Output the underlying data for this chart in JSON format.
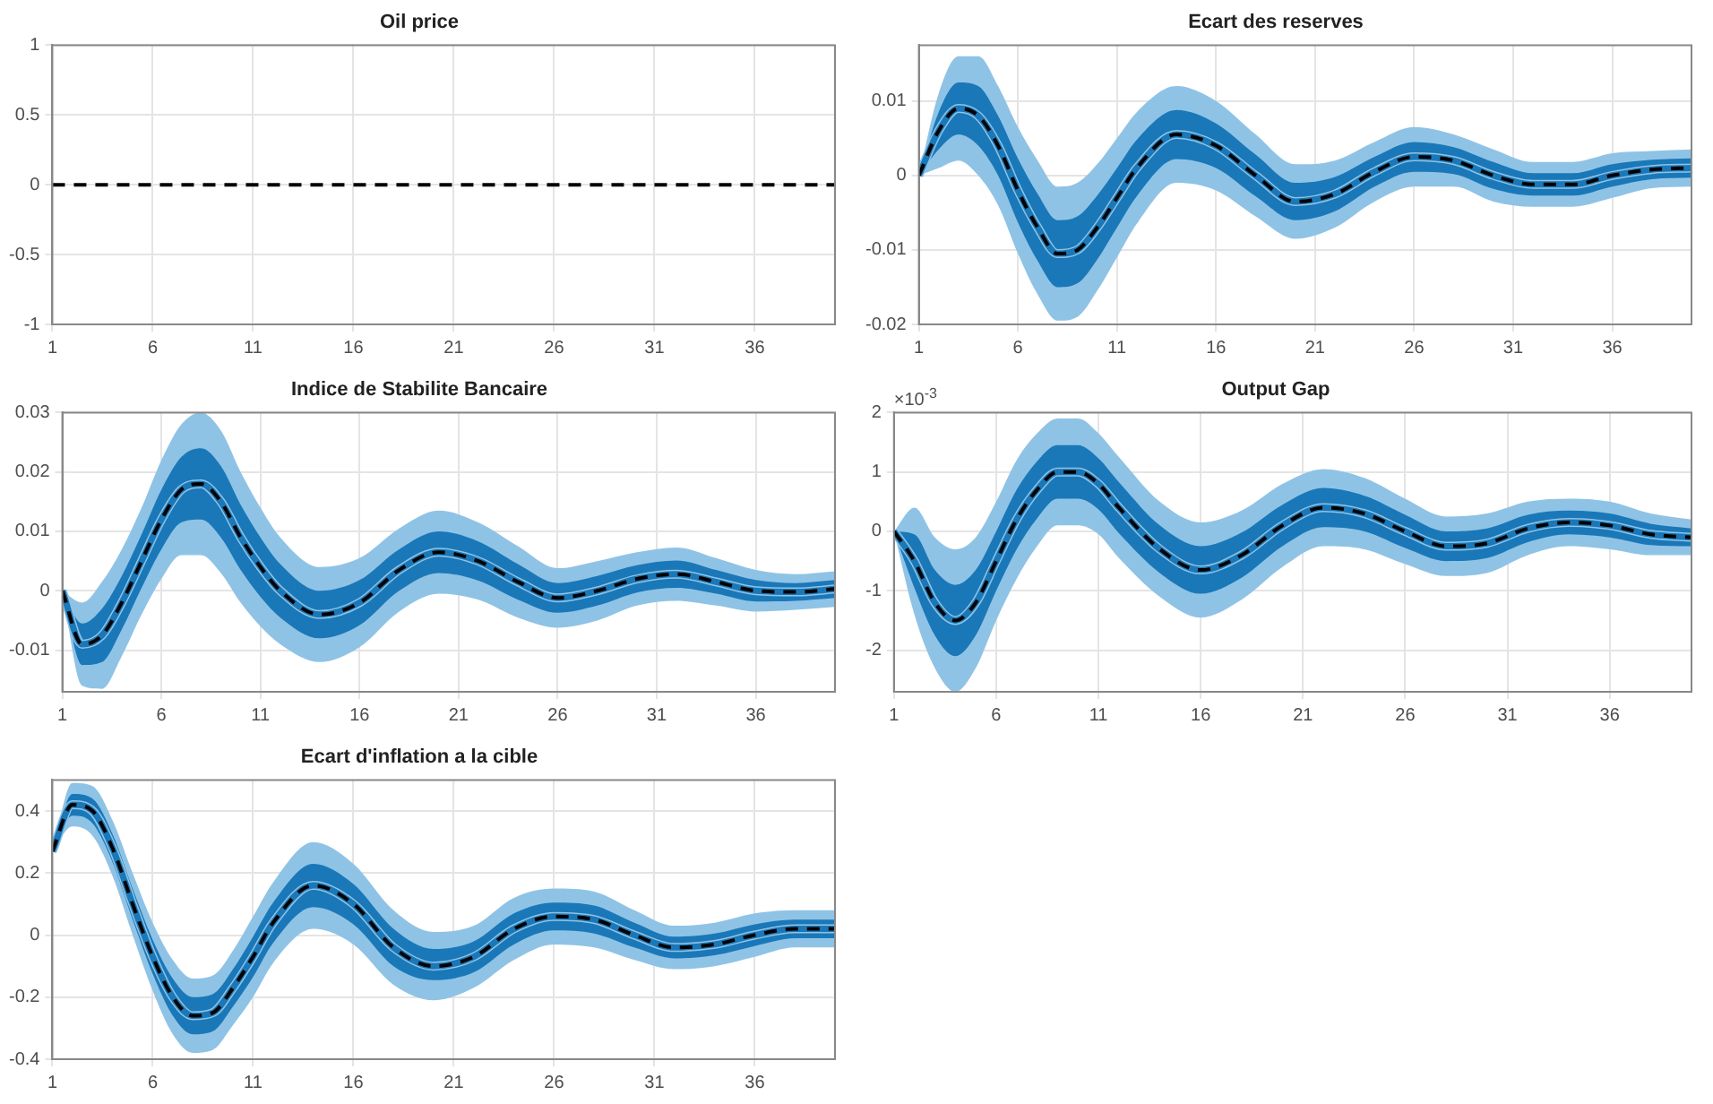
{
  "chart_data": [
    {
      "type": "line",
      "title": "Oil price",
      "x": [
        1,
        2,
        3,
        4,
        5,
        6,
        7,
        8,
        9,
        10,
        11,
        12,
        14,
        16,
        18,
        20,
        22,
        24,
        26,
        28,
        30,
        32,
        34,
        36,
        38,
        40
      ],
      "xlim": [
        1,
        40
      ],
      "xticks": [
        1,
        6,
        11,
        16,
        21,
        26,
        31,
        36
      ],
      "ylim": [
        -1,
        1
      ],
      "yticks": [
        -1,
        -0.5,
        0,
        0.5,
        1
      ],
      "grid": true,
      "series": [
        {
          "type": "line",
          "color": "#000000",
          "line_style": "dashed",
          "values": [
            0,
            0,
            0,
            0,
            0,
            0,
            0,
            0,
            0,
            0,
            0,
            0,
            0,
            0,
            0,
            0,
            0,
            0,
            0,
            0,
            0,
            0,
            0,
            0,
            0,
            0
          ]
        }
      ]
    },
    {
      "type": "line",
      "title": "Ecart des reserves",
      "x": [
        1,
        2,
        3,
        4,
        5,
        6,
        7,
        8,
        9,
        10,
        11,
        12,
        14,
        16,
        18,
        20,
        22,
        24,
        26,
        28,
        30,
        32,
        34,
        36,
        38,
        40
      ],
      "xlim": [
        1,
        40
      ],
      "xticks": [
        1,
        6,
        11,
        16,
        21,
        26,
        31,
        36
      ],
      "ylim": [
        -0.02,
        0.0175
      ],
      "yticks": [
        -0.02,
        -0.01,
        0,
        0.01
      ],
      "grid": true,
      "series": [
        {
          "type": "line",
          "color": "#8fc3e6",
          "values": [
            0,
            0.006,
            0.009,
            0.008,
            0.004,
            -0.002,
            -0.007,
            -0.0105,
            -0.01,
            -0.007,
            -0.003,
            0.001,
            0.0055,
            0.004,
            0,
            -0.0035,
            -0.0025,
            0.0005,
            0.0025,
            0.002,
            0,
            -0.0012,
            -0.0012,
            0,
            0.0008,
            0.001
          ],
          "lower": [
            0,
            0.001,
            0.002,
            0,
            -0.004,
            -0.0105,
            -0.016,
            -0.0195,
            -0.019,
            -0.0155,
            -0.011,
            -0.0065,
            -0.001,
            -0.002,
            -0.0055,
            -0.0085,
            -0.007,
            -0.0035,
            -0.0015,
            -0.0015,
            -0.0035,
            -0.0042,
            -0.0042,
            -0.003,
            -0.0017,
            -0.0015
          ],
          "upper": [
            0,
            0.011,
            0.016,
            0.016,
            0.012,
            0.0065,
            0.002,
            -0.0015,
            -0.001,
            0.0015,
            0.005,
            0.0085,
            0.012,
            0.01,
            0.0055,
            0.0015,
            0.002,
            0.0045,
            0.0065,
            0.0055,
            0.0035,
            0.0018,
            0.0018,
            0.003,
            0.0033,
            0.0035
          ]
        },
        {
          "type": "line",
          "color": "#1a78b8",
          "values": [
            0,
            0.006,
            0.009,
            0.008,
            0.004,
            -0.002,
            -0.007,
            -0.0105,
            -0.01,
            -0.007,
            -0.003,
            0.001,
            0.0055,
            0.004,
            0,
            -0.0035,
            -0.0025,
            0.0005,
            0.0025,
            0.002,
            0,
            -0.0012,
            -0.0012,
            0,
            0.0008,
            0.001
          ],
          "lower": [
            0,
            0.0035,
            0.0055,
            0.004,
            0,
            -0.0063,
            -0.0115,
            -0.015,
            -0.0145,
            -0.0113,
            -0.007,
            -0.0028,
            0.0022,
            0.001,
            -0.0028,
            -0.006,
            -0.0048,
            -0.0015,
            0.0005,
            0.0002,
            -0.0018,
            -0.0027,
            -0.0027,
            -0.0015,
            -0.0005,
            -0.0003
          ],
          "upper": [
            0,
            0.0085,
            0.0125,
            0.012,
            0.008,
            0.0023,
            -0.0025,
            -0.006,
            -0.0055,
            -0.0027,
            0.001,
            0.0048,
            0.0088,
            0.007,
            0.0028,
            -0.001,
            -0.0002,
            0.0025,
            0.0045,
            0.0038,
            0.0018,
            0.0003,
            0.0003,
            0.0015,
            0.0021,
            0.0023
          ]
        },
        {
          "type": "line",
          "color": "#000000",
          "line_style": "dashed",
          "values": [
            0,
            0.006,
            0.009,
            0.008,
            0.004,
            -0.002,
            -0.007,
            -0.0105,
            -0.01,
            -0.007,
            -0.003,
            0.001,
            0.0055,
            0.004,
            0,
            -0.0035,
            -0.0025,
            0.0005,
            0.0025,
            0.002,
            0,
            -0.0012,
            -0.0012,
            0,
            0.0008,
            0.001
          ]
        }
      ]
    },
    {
      "type": "line",
      "title": "Indice de Stabilite Bancaire",
      "x": [
        1,
        2,
        3,
        4,
        5,
        6,
        7,
        8,
        9,
        10,
        11,
        12,
        14,
        16,
        18,
        20,
        22,
        24,
        26,
        28,
        30,
        32,
        34,
        36,
        38,
        40
      ],
      "xlim": [
        1,
        40
      ],
      "xticks": [
        1,
        6,
        11,
        16,
        21,
        26,
        31,
        36
      ],
      "ylim": [
        -0.017,
        0.03
      ],
      "yticks": [
        -0.01,
        0,
        0.01,
        0.02,
        0.03
      ],
      "grid": true,
      "series": [
        {
          "type": "line",
          "color": "#8fc3e6",
          "values": [
            0,
            -0.009,
            -0.0075,
            -0.002,
            0.005,
            0.012,
            0.017,
            0.018,
            0.015,
            0.009,
            0.004,
            0,
            -0.004,
            -0.002,
            0.0035,
            0.0065,
            0.005,
            0.0015,
            -0.0012,
            0,
            0.002,
            0.0028,
            0.0015,
            0,
            -0.0002,
            0.0003
          ],
          "lower": [
            0,
            -0.016,
            -0.0165,
            -0.011,
            -0.004,
            0.002,
            0.006,
            0.006,
            0.003,
            -0.002,
            -0.006,
            -0.009,
            -0.012,
            -0.0095,
            -0.0035,
            -0.0005,
            -0.0015,
            -0.0045,
            -0.0062,
            -0.005,
            -0.0025,
            -0.0017,
            -0.0025,
            -0.0035,
            -0.0032,
            -0.0027
          ],
          "upper": [
            0,
            -0.002,
            0.0015,
            0.007,
            0.014,
            0.022,
            0.028,
            0.03,
            0.027,
            0.02,
            0.014,
            0.009,
            0.004,
            0.0055,
            0.0105,
            0.0135,
            0.0115,
            0.0075,
            0.0038,
            0.005,
            0.0065,
            0.0073,
            0.0055,
            0.0035,
            0.0028,
            0.0033
          ]
        },
        {
          "type": "line",
          "color": "#1a78b8",
          "values": [
            0,
            -0.009,
            -0.0075,
            -0.002,
            0.005,
            0.012,
            0.017,
            0.018,
            0.015,
            0.009,
            0.004,
            0,
            -0.004,
            -0.002,
            0.0035,
            0.0065,
            0.005,
            0.0015,
            -0.0012,
            0,
            0.002,
            0.0028,
            0.0015,
            0,
            -0.0002,
            0.0003
          ],
          "lower": [
            0,
            -0.0125,
            -0.012,
            -0.0065,
            0.0005,
            0.007,
            0.0115,
            0.012,
            0.009,
            0.0035,
            -0.001,
            -0.0045,
            -0.008,
            -0.0058,
            0,
            0.003,
            0.0017,
            -0.0015,
            -0.0037,
            -0.0025,
            -0.0003,
            0.0005,
            -0.0005,
            -0.0018,
            -0.0017,
            -0.0012
          ],
          "upper": [
            0,
            -0.0055,
            -0.003,
            0.0025,
            0.0095,
            0.017,
            0.0225,
            0.024,
            0.021,
            0.0145,
            0.009,
            0.0045,
            0,
            0.0018,
            0.007,
            0.01,
            0.0083,
            0.0045,
            0.0013,
            0.0025,
            0.0043,
            0.0051,
            0.0035,
            0.0018,
            0.0013,
            0.0018
          ]
        },
        {
          "type": "line",
          "color": "#000000",
          "line_style": "dashed",
          "values": [
            0,
            -0.009,
            -0.0075,
            -0.002,
            0.005,
            0.012,
            0.017,
            0.018,
            0.015,
            0.009,
            0.004,
            0,
            -0.004,
            -0.002,
            0.0035,
            0.0065,
            0.005,
            0.0015,
            -0.0012,
            0,
            0.002,
            0.0028,
            0.0015,
            0,
            -0.0002,
            0.0003
          ]
        }
      ]
    },
    {
      "type": "line",
      "title": "Output Gap",
      "annotations": [
        "×10$^{-3}$"
      ],
      "x": [
        1,
        2,
        3,
        4,
        5,
        6,
        7,
        8,
        9,
        10,
        11,
        12,
        14,
        16,
        18,
        20,
        22,
        24,
        26,
        28,
        30,
        32,
        34,
        36,
        38,
        40
      ],
      "xlim": [
        1,
        40
      ],
      "xticks": [
        1,
        6,
        11,
        16,
        21,
        26,
        31,
        36
      ],
      "ylim": [
        -2.7,
        2
      ],
      "yticks": [
        -2,
        -1,
        0,
        1,
        2
      ],
      "grid": true,
      "series": [
        {
          "type": "line",
          "color": "#8fc3e6",
          "values": [
            0,
            -0.5,
            -1.2,
            -1.5,
            -1.2,
            -0.5,
            0.2,
            0.7,
            1,
            1,
            0.8,
            0.4,
            -0.3,
            -0.65,
            -0.4,
            0.1,
            0.4,
            0.3,
            0,
            -0.25,
            -0.2,
            0.05,
            0.15,
            0.1,
            -0.05,
            -0.1
          ],
          "lower": [
            0,
            -1.4,
            -2.3,
            -2.7,
            -2.3,
            -1.5,
            -0.8,
            -0.25,
            0.1,
            0.1,
            -0.05,
            -0.45,
            -1.1,
            -1.45,
            -1.15,
            -0.6,
            -0.25,
            -0.3,
            -0.55,
            -0.75,
            -0.7,
            -0.4,
            -0.25,
            -0.3,
            -0.4,
            -0.4
          ],
          "upper": [
            0,
            0.4,
            -0.1,
            -0.3,
            -0.1,
            0.5,
            1.2,
            1.65,
            1.9,
            1.9,
            1.65,
            1.25,
            0.5,
            0.15,
            0.35,
            0.8,
            1.05,
            0.9,
            0.55,
            0.25,
            0.3,
            0.5,
            0.55,
            0.5,
            0.3,
            0.2
          ]
        },
        {
          "type": "line",
          "color": "#1a78b8",
          "values": [
            0,
            -0.5,
            -1.2,
            -1.5,
            -1.2,
            -0.5,
            0.2,
            0.7,
            1,
            1,
            0.8,
            0.4,
            -0.3,
            -0.65,
            -0.4,
            0.1,
            0.4,
            0.3,
            0,
            -0.25,
            -0.2,
            0.05,
            0.15,
            0.1,
            -0.05,
            -0.1
          ],
          "lower": [
            0,
            -0.95,
            -1.75,
            -2.1,
            -1.75,
            -1,
            -0.3,
            0.22,
            0.55,
            0.55,
            0.37,
            -0.03,
            -0.7,
            -1.05,
            -0.78,
            -0.25,
            0.07,
            0,
            -0.28,
            -0.5,
            -0.45,
            -0.18,
            -0.05,
            -0.1,
            -0.23,
            -0.25
          ],
          "upper": [
            0,
            -0.05,
            -0.65,
            -0.9,
            -0.65,
            0,
            0.7,
            1.18,
            1.45,
            1.45,
            1.23,
            0.83,
            0.1,
            -0.25,
            -0.02,
            0.45,
            0.73,
            0.6,
            0.28,
            0,
            0.05,
            0.28,
            0.35,
            0.3,
            0.13,
            0.05
          ]
        },
        {
          "type": "line",
          "color": "#000000",
          "line_style": "dashed",
          "values": [
            0,
            -0.5,
            -1.2,
            -1.5,
            -1.2,
            -0.5,
            0.2,
            0.7,
            1,
            1,
            0.8,
            0.4,
            -0.3,
            -0.65,
            -0.4,
            0.1,
            0.4,
            0.3,
            0,
            -0.25,
            -0.2,
            0.05,
            0.15,
            0.1,
            -0.05,
            -0.1
          ]
        }
      ]
    },
    {
      "type": "line",
      "title": "Ecart d'inflation a la cible",
      "x": [
        1,
        2,
        3,
        4,
        5,
        6,
        7,
        8,
        9,
        10,
        11,
        12,
        14,
        16,
        18,
        20,
        22,
        24,
        26,
        28,
        30,
        32,
        34,
        36,
        38,
        40
      ],
      "xlim": [
        1,
        40
      ],
      "xticks": [
        1,
        6,
        11,
        16,
        21,
        26,
        31,
        36
      ],
      "ylim": [
        -0.4,
        0.5
      ],
      "yticks": [
        -0.4,
        -0.2,
        0,
        0.2,
        0.4
      ],
      "grid": true,
      "series": [
        {
          "type": "line",
          "color": "#8fc3e6",
          "values": [
            0.27,
            0.42,
            0.4,
            0.28,
            0.1,
            -0.07,
            -0.2,
            -0.26,
            -0.25,
            -0.17,
            -0.07,
            0.04,
            0.16,
            0.1,
            -0.04,
            -0.1,
            -0.07,
            0.02,
            0.06,
            0.05,
            0,
            -0.04,
            -0.03,
            0,
            0.02,
            0.02
          ],
          "lower": [
            0.27,
            0.35,
            0.32,
            0.19,
            0,
            -0.18,
            -0.32,
            -0.38,
            -0.37,
            -0.29,
            -0.2,
            -0.09,
            0.02,
            -0.03,
            -0.16,
            -0.21,
            -0.17,
            -0.08,
            -0.03,
            -0.04,
            -0.08,
            -0.11,
            -0.1,
            -0.07,
            -0.04,
            -0.04
          ],
          "upper": [
            0.27,
            0.49,
            0.48,
            0.37,
            0.2,
            0.04,
            -0.08,
            -0.14,
            -0.13,
            -0.05,
            0.06,
            0.17,
            0.3,
            0.23,
            0.08,
            0.01,
            0.03,
            0.12,
            0.15,
            0.14,
            0.08,
            0.03,
            0.04,
            0.07,
            0.08,
            0.08
          ]
        },
        {
          "type": "line",
          "color": "#1a78b8",
          "values": [
            0.27,
            0.42,
            0.4,
            0.28,
            0.1,
            -0.07,
            -0.2,
            -0.26,
            -0.25,
            -0.17,
            -0.07,
            0.04,
            0.16,
            0.1,
            -0.04,
            -0.1,
            -0.07,
            0.02,
            0.06,
            0.05,
            0,
            -0.04,
            -0.03,
            0,
            0.02,
            0.02
          ],
          "lower": [
            0.27,
            0.385,
            0.36,
            0.235,
            0.05,
            -0.125,
            -0.26,
            -0.32,
            -0.31,
            -0.23,
            -0.135,
            -0.025,
            0.09,
            0.035,
            -0.1,
            -0.145,
            -0.12,
            -0.03,
            0.015,
            0.005,
            -0.04,
            -0.075,
            -0.065,
            -0.035,
            -0.01,
            -0.01
          ],
          "upper": [
            0.27,
            0.455,
            0.44,
            0.325,
            0.15,
            -0.015,
            -0.14,
            -0.2,
            -0.19,
            -0.11,
            -0.005,
            0.105,
            0.23,
            0.165,
            0.02,
            -0.045,
            -0.02,
            0.07,
            0.105,
            0.095,
            0.04,
            -0.005,
            0.005,
            0.035,
            0.05,
            0.05
          ]
        },
        {
          "type": "line",
          "color": "#000000",
          "line_style": "dashed",
          "values": [
            0.27,
            0.42,
            0.4,
            0.28,
            0.1,
            -0.07,
            -0.2,
            -0.26,
            -0.25,
            -0.17,
            -0.07,
            0.04,
            0.16,
            0.1,
            -0.04,
            -0.1,
            -0.07,
            0.02,
            0.06,
            0.05,
            0,
            -0.04,
            -0.03,
            0,
            0.02,
            0.02
          ]
        }
      ]
    }
  ]
}
